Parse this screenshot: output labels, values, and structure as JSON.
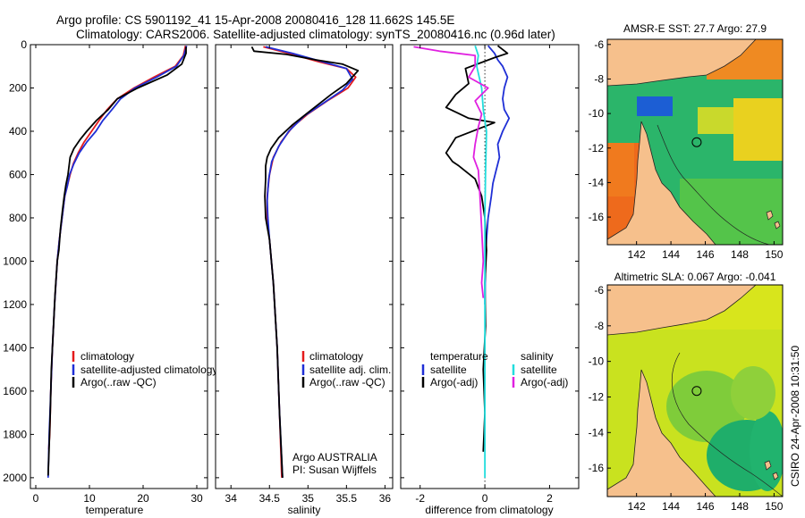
{
  "title": {
    "line1": "Argo profile: CS 5901192_41 15-Apr-2008 20080416_128 11.662S 145.5E",
    "line2": "Climatology: CARS2006. Satellite-adjusted climatology: synTS_20080416.nc (0.96d later)"
  },
  "side_label": "CSIRO 24-Apr-2008 10:31:50",
  "colors": {
    "climatology": "#e41a1c",
    "satellite": "#1f2fd6",
    "argo": "#000000",
    "argo_adj": "#e020e0",
    "salinity_satellite": "#22dddd",
    "land": "#f6c08c"
  },
  "chart_data": [
    {
      "type": "line",
      "panel": "temperature",
      "xlabel": "temperature",
      "ylabel": "",
      "xlim": [
        -1,
        32
      ],
      "ylim": [
        2050,
        0
      ],
      "xticks": [
        0,
        10,
        20,
        30
      ],
      "yticks": [
        0,
        200,
        400,
        600,
        800,
        1000,
        1200,
        1400,
        1600,
        1800,
        2000
      ],
      "legend": [
        "climatology",
        "satellite-adjusted climatology",
        "Argo(..raw -QC)"
      ],
      "series": [
        {
          "name": "climatology",
          "color": "climatology",
          "points": [
            [
              27.9,
              5
            ],
            [
              27.5,
              50
            ],
            [
              26,
              100
            ],
            [
              22,
              150
            ],
            [
              18.3,
              200
            ],
            [
              15.2,
              250
            ],
            [
              13.3,
              300
            ],
            [
              11.8,
              350
            ],
            [
              10.4,
              400
            ],
            [
              9,
              450
            ],
            [
              7.9,
              500
            ],
            [
              7,
              550
            ],
            [
              6.4,
              600
            ],
            [
              5.9,
              650
            ],
            [
              5.4,
              700
            ],
            [
              4.9,
              800
            ],
            [
              4.4,
              900
            ],
            [
              4.0,
              1000
            ],
            [
              3.5,
              1200
            ],
            [
              3.1,
              1400
            ],
            [
              2.8,
              1600
            ],
            [
              2.6,
              1800
            ],
            [
              2.4,
              1870
            ]
          ]
        },
        {
          "name": "satellite-adjusted climatology",
          "color": "satellite",
          "points": [
            [
              28.1,
              5
            ],
            [
              27.6,
              50
            ],
            [
              26.2,
              100
            ],
            [
              22.5,
              150
            ],
            [
              18.5,
              200
            ],
            [
              15.8,
              250
            ],
            [
              14.2,
              300
            ],
            [
              12.5,
              350
            ],
            [
              11.2,
              400
            ],
            [
              9.5,
              450
            ],
            [
              8.1,
              500
            ],
            [
              7.1,
              550
            ],
            [
              6.3,
              600
            ],
            [
              5.9,
              650
            ],
            [
              5.4,
              700
            ],
            [
              4.9,
              800
            ],
            [
              4.4,
              900
            ],
            [
              4.0,
              1000
            ],
            [
              3.5,
              1200
            ],
            [
              3.1,
              1400
            ],
            [
              2.8,
              1600
            ],
            [
              2.5,
              1800
            ],
            [
              2.3,
              2000
            ]
          ]
        },
        {
          "name": "Argo(..raw -QC)",
          "color": "argo",
          "points": [
            [
              28,
              10
            ],
            [
              28,
              40
            ],
            [
              27.2,
              90
            ],
            [
              24.5,
              140
            ],
            [
              19,
              200
            ],
            [
              15.2,
              250
            ],
            [
              13.5,
              300
            ],
            [
              11.3,
              350
            ],
            [
              9.5,
              400
            ],
            [
              8.2,
              440
            ],
            [
              7.1,
              480
            ],
            [
              6.4,
              520
            ],
            [
              6.2,
              560
            ],
            [
              6.0,
              600
            ],
            [
              5.6,
              650
            ],
            [
              5.3,
              700
            ],
            [
              5.0,
              760
            ],
            [
              4.6,
              850
            ],
            [
              4.3,
              950
            ],
            [
              4.0,
              1000
            ],
            [
              3.6,
              1150
            ],
            [
              3.2,
              1350
            ],
            [
              2.9,
              1500
            ],
            [
              2.7,
              1700
            ],
            [
              2.5,
              1850
            ],
            [
              2.3,
              1990
            ]
          ]
        }
      ]
    },
    {
      "type": "line",
      "panel": "salinity",
      "xlabel": "salinity",
      "xlim": [
        33.8,
        36.1
      ],
      "ylim": [
        2050,
        0
      ],
      "xticks": [
        34,
        34.5,
        35,
        35.5,
        36
      ],
      "xtick_labels": [
        "34",
        "34.5",
        "35",
        "35.5",
        "36"
      ],
      "legend": [
        "climatology",
        "satellite adj. clim.",
        "Argo(..raw -QC)"
      ],
      "annotation": [
        "Argo AUSTRALIA",
        "PI: Susan Wijffels"
      ],
      "series": [
        {
          "name": "climatology",
          "color": "climatology",
          "points": [
            [
              34.42,
              10
            ],
            [
              34.75,
              40
            ],
            [
              35.15,
              80
            ],
            [
              35.5,
              110
            ],
            [
              35.62,
              150
            ],
            [
              35.52,
              200
            ],
            [
              35.25,
              260
            ],
            [
              35.0,
              320
            ],
            [
              34.8,
              380
            ],
            [
              34.65,
              450
            ],
            [
              34.55,
              520
            ],
            [
              34.5,
              600
            ],
            [
              34.47,
              700
            ],
            [
              34.47,
              800
            ],
            [
              34.5,
              900
            ],
            [
              34.55,
              1100
            ],
            [
              34.6,
              1400
            ],
            [
              34.63,
              1700
            ],
            [
              34.66,
              2000
            ]
          ]
        },
        {
          "name": "satellite adj. clim.",
          "color": "satellite",
          "points": [
            [
              34.45,
              10
            ],
            [
              34.8,
              40
            ],
            [
              35.2,
              80
            ],
            [
              35.5,
              110
            ],
            [
              35.58,
              160
            ],
            [
              35.45,
              210
            ],
            [
              35.2,
              270
            ],
            [
              34.95,
              330
            ],
            [
              34.75,
              400
            ],
            [
              34.62,
              470
            ],
            [
              34.53,
              540
            ],
            [
              34.49,
              620
            ],
            [
              34.47,
              720
            ],
            [
              34.48,
              800
            ],
            [
              34.5,
              900
            ],
            [
              34.55,
              1100
            ],
            [
              34.6,
              1400
            ],
            [
              34.63,
              1700
            ],
            [
              34.67,
              2000
            ]
          ]
        },
        {
          "name": "Argo(..raw -QC)",
          "color": "argo",
          "points": [
            [
              34.27,
              10
            ],
            [
              34.3,
              30
            ],
            [
              34.72,
              45
            ],
            [
              35.1,
              70
            ],
            [
              35.45,
              90
            ],
            [
              35.65,
              120
            ],
            [
              35.5,
              180
            ],
            [
              35.3,
              230
            ],
            [
              35.05,
              300
            ],
            [
              34.8,
              370
            ],
            [
              34.62,
              430
            ],
            [
              34.52,
              480
            ],
            [
              34.47,
              520
            ],
            [
              34.45,
              560
            ],
            [
              34.45,
              620
            ],
            [
              34.44,
              700
            ],
            [
              34.45,
              800
            ],
            [
              34.5,
              900
            ],
            [
              34.55,
              1100
            ],
            [
              34.6,
              1400
            ],
            [
              34.63,
              1700
            ],
            [
              34.67,
              2000
            ]
          ]
        }
      ]
    },
    {
      "type": "line",
      "panel": "difference",
      "xlabel": "difference from climatology",
      "xlim": [
        -2.6,
        2.9
      ],
      "ylim": [
        2050,
        0
      ],
      "xticks": [
        -2,
        0,
        2
      ],
      "legend_titles": [
        "temperature",
        "salinity"
      ],
      "legend": [
        "satellite",
        "Argo(-adj)",
        "satellite",
        "Argo(-adj)"
      ],
      "series": [
        {
          "name": "temperature satellite",
          "color": "satellite",
          "points": [
            [
              0.1,
              5
            ],
            [
              0.3,
              40
            ],
            [
              0.4,
              70
            ],
            [
              0.55,
              100
            ],
            [
              0.7,
              150
            ],
            [
              0.6,
              200
            ],
            [
              0.55,
              250
            ],
            [
              0.6,
              300
            ],
            [
              0.75,
              340
            ],
            [
              0.55,
              400
            ],
            [
              0.4,
              460
            ],
            [
              0.45,
              520
            ],
            [
              0.35,
              580
            ],
            [
              0.25,
              640
            ],
            [
              0.2,
              700
            ],
            [
              0.1,
              800
            ],
            [
              0.05,
              900
            ],
            [
              0.02,
              1000
            ],
            [
              0.0,
              1200
            ]
          ]
        },
        {
          "name": "temperature Argo(-adj)",
          "color": "argo",
          "points": [
            [
              0.4,
              5
            ],
            [
              0.7,
              40
            ],
            [
              0.3,
              60
            ],
            [
              -0.6,
              110
            ],
            [
              -0.5,
              180
            ],
            [
              -0.9,
              230
            ],
            [
              -1.2,
              290
            ],
            [
              -0.5,
              340
            ],
            [
              0.3,
              360
            ],
            [
              -0.9,
              430
            ],
            [
              -1.2,
              500
            ],
            [
              -1.0,
              540
            ],
            [
              -0.8,
              560
            ],
            [
              -0.3,
              620
            ],
            [
              -0.1,
              700
            ],
            [
              0.0,
              800
            ],
            [
              0.05,
              950
            ],
            [
              0.0,
              1100
            ],
            [
              0.02,
              1300
            ],
            [
              -0.05,
              1500
            ],
            [
              0.0,
              1700
            ],
            [
              -0.05,
              1880
            ]
          ]
        },
        {
          "name": "salinity satellite",
          "color": "salinity_satellite",
          "points": [
            [
              -0.3,
              5
            ],
            [
              -0.2,
              50
            ],
            [
              -0.25,
              100
            ],
            [
              -0.1,
              200
            ],
            [
              -0.05,
              300
            ],
            [
              0.05,
              400
            ],
            [
              0.02,
              600
            ],
            [
              0.0,
              800
            ],
            [
              0.0,
              1100
            ],
            [
              0.0,
              1500
            ],
            [
              0.0,
              1800
            ],
            [
              0.0,
              2000
            ]
          ]
        },
        {
          "name": "salinity Argo(-adj)",
          "color": "argo_adj",
          "points": [
            [
              -2.2,
              10
            ],
            [
              -1.4,
              30
            ],
            [
              -0.3,
              50
            ],
            [
              -0.3,
              100
            ],
            [
              -0.5,
              150
            ],
            [
              0.1,
              200
            ],
            [
              -0.3,
              260
            ],
            [
              -0.1,
              320
            ],
            [
              -0.2,
              380
            ],
            [
              -0.3,
              460
            ],
            [
              -0.35,
              520
            ],
            [
              -0.2,
              580
            ],
            [
              -0.15,
              700
            ],
            [
              -0.1,
              850
            ],
            [
              -0.05,
              1000
            ],
            [
              -0.1,
              1100
            ],
            [
              -0.05,
              1170
            ]
          ]
        }
      ]
    },
    {
      "type": "heatmap",
      "panel": "map-sst",
      "title": "AMSR-E SST: 27.7 Argo: 27.9",
      "xlim": [
        140.3,
        150.5
      ],
      "ylim": [
        -17.6,
        -5.7
      ],
      "xticks": [
        142,
        144,
        146,
        148,
        150
      ],
      "yticks": [
        -6,
        -8,
        -10,
        -12,
        -14,
        -16
      ],
      "marker": [
        145.5,
        -11.662
      ]
    },
    {
      "type": "heatmap",
      "panel": "map-sla",
      "title": "Altimetric SLA: 0.067 Argo: -0.041",
      "xlim": [
        140.3,
        150.5
      ],
      "ylim": [
        -17.6,
        -5.7
      ],
      "xticks": [
        142,
        144,
        146,
        148,
        150
      ],
      "yticks": [
        -6,
        -8,
        -10,
        -12,
        -14,
        -16
      ],
      "marker": [
        145.5,
        -11.662
      ]
    }
  ]
}
